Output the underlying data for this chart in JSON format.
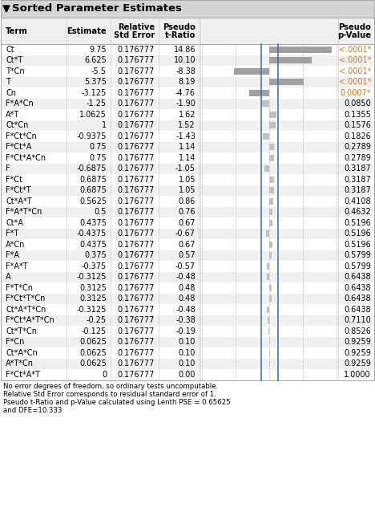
{
  "title": "Sorted Parameter Estimates",
  "rows": [
    [
      "Ct",
      "9.75",
      "0.176777",
      "14.86",
      14.86,
      "<.0001*"
    ],
    [
      "Ct*T",
      "6.625",
      "0.176777",
      "10.10",
      10.1,
      "<.0001*"
    ],
    [
      "T*Cn",
      "-5.5",
      "0.176777",
      "-8.38",
      -8.38,
      "<.0001*"
    ],
    [
      "T",
      "5.375",
      "0.176777",
      "8.19",
      8.19,
      "<.0001*"
    ],
    [
      "Cn",
      "-3.125",
      "0.176777",
      "-4.76",
      -4.76,
      "0.0007*"
    ],
    [
      "F*A*Cn",
      "-1.25",
      "0.176777",
      "-1.90",
      -1.9,
      "0.0850"
    ],
    [
      "A*T",
      "1.0625",
      "0.176777",
      "1.62",
      1.62,
      "0.1355"
    ],
    [
      "Ct*Cn",
      "1",
      "0.176777",
      "1.52",
      1.52,
      "0.1576"
    ],
    [
      "F*Ct*Cn",
      "-0.9375",
      "0.176777",
      "-1.43",
      -1.43,
      "0.1826"
    ],
    [
      "F*Ct*A",
      "0.75",
      "0.176777",
      "1.14",
      1.14,
      "0.2789"
    ],
    [
      "F*Ct*A*Cn",
      "0.75",
      "0.176777",
      "1.14",
      1.14,
      "0.2789"
    ],
    [
      "F",
      "-0.6875",
      "0.176777",
      "-1.05",
      -1.05,
      "0.3187"
    ],
    [
      "F*Ct",
      "0.6875",
      "0.176777",
      "1.05",
      1.05,
      "0.3187"
    ],
    [
      "F*Ct*T",
      "0.6875",
      "0.176777",
      "1.05",
      1.05,
      "0.3187"
    ],
    [
      "Ct*A*T",
      "0.5625",
      "0.176777",
      "0.86",
      0.86,
      "0.4108"
    ],
    [
      "F*A*T*Cn",
      "0.5",
      "0.176777",
      "0.76",
      0.76,
      "0.4632"
    ],
    [
      "Ct*A",
      "0.4375",
      "0.176777",
      "0.67",
      0.67,
      "0.5196"
    ],
    [
      "F*T",
      "-0.4375",
      "0.176777",
      "-0.67",
      -0.67,
      "0.5196"
    ],
    [
      "A*Cn",
      "0.4375",
      "0.176777",
      "0.67",
      0.67,
      "0.5196"
    ],
    [
      "F*A",
      "0.375",
      "0.176777",
      "0.57",
      0.57,
      "0.5799"
    ],
    [
      "F*A*T",
      "-0.375",
      "0.176777",
      "-0.57",
      -0.57,
      "0.5799"
    ],
    [
      "A",
      "-0.3125",
      "0.176777",
      "-0.48",
      -0.48,
      "0.6438"
    ],
    [
      "F*T*Cn",
      "0.3125",
      "0.176777",
      "0.48",
      0.48,
      "0.6438"
    ],
    [
      "F*Ct*T*Cn",
      "0.3125",
      "0.176777",
      "0.48",
      0.48,
      "0.6438"
    ],
    [
      "Ct*A*T*Cn",
      "-0.3125",
      "0.176777",
      "-0.48",
      -0.48,
      "0.6438"
    ],
    [
      "F*Ct*A*T*Cn",
      "-0.25",
      "0.176777",
      "-0.38",
      -0.38,
      "0.7110"
    ],
    [
      "Ct*T*Cn",
      "-0.125",
      "0.176777",
      "-0.19",
      -0.19,
      "0.8526"
    ],
    [
      "F*Cn",
      "0.0625",
      "0.176777",
      "0.10",
      0.1,
      "0.9259"
    ],
    [
      "Ct*A*Cn",
      "0.0625",
      "0.176777",
      "0.10",
      0.1,
      "0.9259"
    ],
    [
      "A*T*Cn",
      "0.0625",
      "0.176777",
      "0.10",
      0.1,
      "0.9259"
    ],
    [
      "F*Ct*A*T",
      "0",
      "0.176777",
      "0.00",
      0.0,
      "1.0000"
    ]
  ],
  "footnote_lines": [
    "No error degrees of freedom, so ordinary tests uncomputable.",
    "Relative Std Error corresponds to residual standard error of 1.",
    "Pseudo t-Ratio and p-Value calculated using Lenth PSE = 0.65625",
    "and DFE=10.333"
  ],
  "blue_line_color": "#4472c4",
  "orange_color": "#e8720c",
  "bar_color_sig": "#a0a0a0",
  "bar_color_norm": "#c0c0c0",
  "title_bg": "#d4d4d4",
  "header_bg": "#f0f0f0",
  "alt_row_bg": "#f0f0f0",
  "border_color": "#aaaaaa",
  "max_t": 16.0,
  "pse_threshold": 2.0,
  "lenth_pse": 0.65625,
  "col_sep_color": "#cccccc"
}
